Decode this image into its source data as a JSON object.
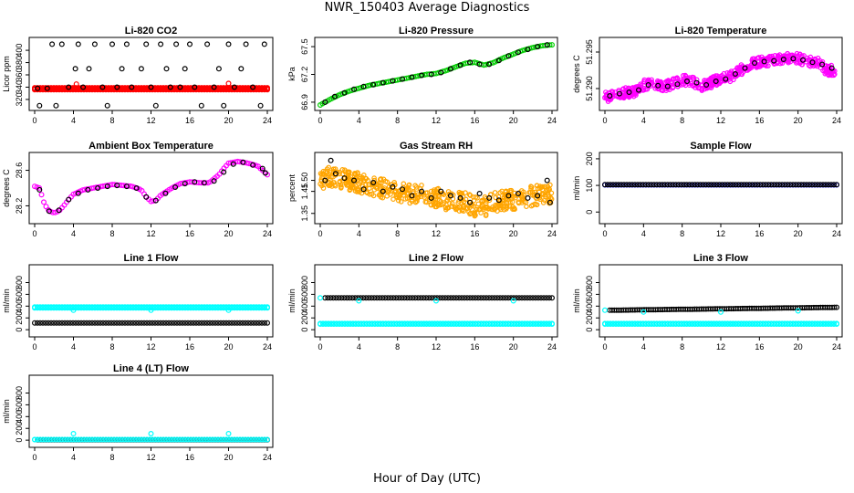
{
  "page": {
    "title": "NWR_150403  Average Diagnostics",
    "xlabel": "Hour of Day (UTC)"
  },
  "colors": {
    "black": "#000000",
    "red": "#ff0000",
    "green": "#00cc00",
    "magenta": "#ff00ff",
    "orange": "#ffa500",
    "blue": "#0000ff",
    "cyan": "#00ffff"
  },
  "chart_data": [
    {
      "type": "scatter",
      "title": "Li-820 CO2",
      "ylabel": "Licor ppm",
      "xlim": [
        0,
        24
      ],
      "ylim": [
        308,
        415
      ],
      "xticks": [
        0,
        4,
        8,
        12,
        16,
        20,
        24
      ],
      "yticks": [
        320,
        340,
        360,
        380,
        400
      ],
      "series": [
        {
          "color": "red",
          "style": "band",
          "x_start": 0,
          "x_end": 24,
          "values": [
            339,
            338,
            337,
            336
          ]
        },
        {
          "color": "black",
          "style": "points",
          "x": [
            0.3,
            0.5,
            1.3,
            1.8,
            2.2,
            2.8,
            3.5,
            4.2,
            4.5,
            5.0,
            5.6,
            6.2,
            7.0,
            7.5,
            8.0,
            8.5,
            9.0,
            9.5,
            10.0,
            11.0,
            11.5,
            12.0,
            12.5,
            13.0,
            13.6,
            14.0,
            14.6,
            15.0,
            15.5,
            16.0,
            16.5,
            17.2,
            17.8,
            18.5,
            19.0,
            19.5,
            20.0,
            20.6,
            21.3,
            21.8,
            22.5,
            23.3,
            23.7
          ],
          "values": [
            338,
            310,
            338,
            410,
            310,
            410,
            340,
            370,
            410,
            340,
            370,
            410,
            340,
            310,
            410,
            340,
            370,
            410,
            340,
            370,
            410,
            340,
            310,
            410,
            370,
            340,
            410,
            340,
            370,
            410,
            340,
            310,
            410,
            340,
            370,
            310,
            410,
            340,
            370,
            410,
            340,
            310,
            410
          ]
        },
        {
          "color": "red",
          "style": "points",
          "x": [
            4.3,
            20.0
          ],
          "values": [
            345,
            346
          ]
        }
      ]
    },
    {
      "type": "scatter",
      "title": "Li-820 Pressure",
      "ylabel": "kPa",
      "xlim": [
        0,
        24
      ],
      "ylim": [
        66.85,
        67.56
      ],
      "xticks": [
        0,
        4,
        8,
        12,
        16,
        20,
        24
      ],
      "yticks": [
        66.9,
        67.2,
        67.5
      ],
      "series": [
        {
          "color": "green",
          "style": "trend",
          "x": [
            0,
            1,
            2,
            3,
            4,
            5,
            6,
            7,
            8,
            9,
            10,
            11,
            12,
            13,
            14,
            15,
            16,
            17,
            18,
            19,
            20,
            21,
            22,
            23,
            24
          ],
          "values": [
            66.87,
            66.93,
            66.98,
            67.02,
            67.05,
            67.08,
            67.1,
            67.12,
            67.14,
            67.16,
            67.18,
            67.2,
            67.21,
            67.24,
            67.28,
            67.32,
            67.33,
            67.3,
            67.33,
            67.38,
            67.42,
            67.46,
            67.49,
            67.51,
            67.52
          ]
        },
        {
          "color": "black",
          "style": "points",
          "x": [
            0.5,
            1.5,
            2.5,
            3.5,
            4.5,
            5.5,
            6.5,
            7.5,
            8.5,
            9.5,
            10.5,
            11.5,
            12.5,
            13.5,
            14.5,
            15.5,
            16.5,
            17.5,
            18.5,
            19.5,
            20.5,
            21.5,
            22.5,
            23.5
          ],
          "values": [
            66.9,
            66.96,
            67.0,
            67.04,
            67.07,
            67.09,
            67.11,
            67.13,
            67.15,
            67.17,
            67.19,
            67.2,
            67.22,
            67.26,
            67.3,
            67.33,
            67.31,
            67.31,
            67.35,
            67.4,
            67.44,
            67.47,
            67.5,
            67.52
          ]
        }
      ]
    },
    {
      "type": "scatter",
      "title": "Li-820 Temperature",
      "ylabel": "degrees C",
      "xlim": [
        0,
        24
      ],
      "ylim": [
        51.2875,
        51.2965
      ],
      "xticks": [
        0,
        4,
        8,
        12,
        16,
        20,
        24
      ],
      "yticks": [
        51.29,
        51.295
      ],
      "ytick_labels": [
        "51.290",
        "51.295"
      ],
      "series": [
        {
          "color": "magenta",
          "style": "cloud",
          "x": [
            0,
            1,
            2,
            3,
            4,
            5,
            6,
            7,
            8,
            9,
            10,
            11,
            12,
            13,
            14,
            15,
            16,
            17,
            18,
            19,
            20,
            21,
            22,
            23,
            24
          ],
          "values": [
            51.2888,
            51.2891,
            51.2894,
            51.2896,
            51.2905,
            51.2906,
            51.2902,
            51.2906,
            51.2912,
            51.291,
            51.2904,
            51.2908,
            51.2914,
            51.2916,
            51.2925,
            51.2933,
            51.2937,
            51.2938,
            51.294,
            51.2942,
            51.2941,
            51.2937,
            51.2936,
            51.2925,
            51.2925
          ],
          "spread": 0.0014
        },
        {
          "color": "black",
          "style": "points",
          "x": [
            0.5,
            1.5,
            2.5,
            3.5,
            4.5,
            5.5,
            6.5,
            7.5,
            8.5,
            9.5,
            10.5,
            11.5,
            12.5,
            13.5,
            14.5,
            15.5,
            16.5,
            17.5,
            18.5,
            19.5,
            20.5,
            21.5,
            22.5,
            23.5
          ],
          "values": [
            51.289,
            51.2893,
            51.2895,
            51.2898,
            51.2905,
            51.2904,
            51.2903,
            51.2906,
            51.291,
            51.2908,
            51.2905,
            51.291,
            51.2913,
            51.292,
            51.2928,
            51.2935,
            51.2937,
            51.2938,
            51.294,
            51.2941,
            51.2939,
            51.2936,
            51.2933,
            51.2928
          ]
        }
      ]
    },
    {
      "type": "scatter",
      "title": "Ambient Box Temperature",
      "ylabel": "degrees C",
      "xlim": [
        0,
        24
      ],
      "ylim": [
        28.04,
        28.76
      ],
      "xticks": [
        0,
        4,
        8,
        12,
        16,
        20,
        24
      ],
      "yticks": [
        28.2,
        28.6
      ],
      "series": [
        {
          "color": "magenta",
          "style": "trend",
          "x": [
            0,
            0.5,
            1,
            1.5,
            2,
            2.5,
            3,
            3.5,
            4,
            5,
            6,
            7,
            8,
            9,
            10,
            11,
            11.5,
            12,
            12.5,
            13,
            14,
            15,
            16,
            17,
            18,
            19,
            19.5,
            20,
            21,
            22,
            23,
            23.5,
            24
          ],
          "values": [
            28.42,
            28.4,
            28.22,
            28.14,
            28.12,
            28.14,
            28.2,
            28.27,
            28.33,
            28.38,
            28.4,
            28.42,
            28.44,
            28.43,
            28.42,
            28.38,
            28.3,
            28.25,
            28.26,
            28.32,
            28.39,
            28.45,
            28.47,
            28.46,
            28.46,
            28.55,
            28.62,
            28.68,
            28.7,
            28.68,
            28.65,
            28.6,
            28.55
          ]
        },
        {
          "color": "black",
          "style": "points",
          "x": [
            0.5,
            1.5,
            2.5,
            3.5,
            4.5,
            5.5,
            6.5,
            7.5,
            8.5,
            9.5,
            10.5,
            11.5,
            12.5,
            13.5,
            14.5,
            15.5,
            16.5,
            17.5,
            18.5,
            19.5,
            20.5,
            21.5,
            22.5,
            23.5,
            23.8
          ],
          "values": [
            28.38,
            28.14,
            28.15,
            28.27,
            28.34,
            28.38,
            28.4,
            28.42,
            28.43,
            28.42,
            28.4,
            28.3,
            28.26,
            28.34,
            28.41,
            28.45,
            28.47,
            28.46,
            28.48,
            28.58,
            28.67,
            28.69,
            28.66,
            28.62,
            28.57
          ]
        }
      ]
    },
    {
      "type": "scatter",
      "title": "Gas Stream RH",
      "ylabel": "percent",
      "xlim": [
        0,
        24
      ],
      "ylim": [
        1.32,
        1.61
      ],
      "xticks": [
        0,
        4,
        8,
        12,
        16,
        20,
        24
      ],
      "yticks": [
        1.35,
        1.45,
        1.5
      ],
      "ytick_labels": [
        "1.35",
        "1.45",
        "1.50"
      ],
      "series": [
        {
          "color": "orange",
          "style": "cloud",
          "x": [
            0,
            1,
            2,
            3,
            4,
            5,
            6,
            7,
            8,
            9,
            10,
            11,
            12,
            13,
            14,
            15,
            16,
            17,
            18,
            19,
            20,
            21,
            22,
            23,
            24
          ],
          "values": [
            1.5,
            1.52,
            1.51,
            1.5,
            1.49,
            1.48,
            1.47,
            1.46,
            1.45,
            1.44,
            1.44,
            1.43,
            1.42,
            1.41,
            1.41,
            1.4,
            1.38,
            1.38,
            1.4,
            1.41,
            1.41,
            1.42,
            1.43,
            1.44,
            1.44
          ],
          "spread": 0.09
        },
        {
          "color": "black",
          "style": "points",
          "x": [
            0.5,
            1.1,
            1.6,
            2.5,
            3.5,
            4.5,
            5.5,
            6.5,
            7.5,
            8.5,
            9.5,
            10.5,
            11.5,
            12.5,
            13.5,
            14.5,
            15.5,
            16.5,
            17.5,
            18.5,
            19.5,
            20.5,
            21.5,
            22.5,
            23.5,
            23.8
          ],
          "values": [
            1.5,
            1.59,
            1.53,
            1.51,
            1.5,
            1.46,
            1.49,
            1.45,
            1.47,
            1.46,
            1.43,
            1.45,
            1.42,
            1.45,
            1.43,
            1.42,
            1.4,
            1.44,
            1.42,
            1.41,
            1.43,
            1.44,
            1.42,
            1.43,
            1.5,
            1.4
          ]
        }
      ]
    },
    {
      "type": "scatter",
      "title": "Sample Flow",
      "ylabel": "ml/min",
      "xlim": [
        0,
        24
      ],
      "ylim": [
        -30,
        210
      ],
      "xticks": [
        0,
        4,
        8,
        12,
        16,
        20,
        24
      ],
      "yticks": [
        0,
        100,
        200
      ],
      "series": [
        {
          "color": "blue",
          "style": "band",
          "x_start": 0,
          "x_end": 24,
          "values": [
            102
          ]
        },
        {
          "color": "black",
          "style": "band",
          "x_start": 0,
          "x_end": 24,
          "values": [
            103
          ]
        }
      ]
    },
    {
      "type": "scatter",
      "title": "Line 1 Flow",
      "ylabel": "ml/min",
      "xlim": [
        0,
        24
      ],
      "ylim": [
        -60,
        1040
      ],
      "xticks": [
        0,
        4,
        8,
        12,
        16,
        20,
        24
      ],
      "yticks": [
        0,
        200,
        400,
        600,
        800
      ],
      "series": [
        {
          "color": "cyan",
          "style": "band",
          "x_start": 0,
          "x_end": 24,
          "values": [
            370,
            385
          ]
        },
        {
          "color": "black",
          "style": "band",
          "x_start": 0,
          "x_end": 24,
          "values": [
            115
          ]
        },
        {
          "color": "cyan",
          "style": "points",
          "x": [
            4,
            12,
            20
          ],
          "values": [
            330,
            330,
            330
          ]
        }
      ]
    },
    {
      "type": "scatter",
      "title": "Line 2 Flow",
      "ylabel": "ml/min",
      "xlim": [
        0,
        24
      ],
      "ylim": [
        -60,
        1040
      ],
      "xticks": [
        0,
        4,
        8,
        12,
        16,
        20,
        24
      ],
      "yticks": [
        0,
        200,
        400,
        600,
        800
      ],
      "series": [
        {
          "color": "cyan",
          "style": "band",
          "x_start": 0,
          "x_end": 24,
          "values": [
            95,
            105
          ]
        },
        {
          "color": "black",
          "style": "band",
          "x_start": 0.5,
          "x_end": 24,
          "values": [
            540
          ]
        },
        {
          "color": "cyan",
          "style": "points",
          "x": [
            0,
            4,
            12,
            20
          ],
          "values": [
            540,
            490,
            490,
            490
          ]
        }
      ]
    },
    {
      "type": "scatter",
      "title": "Line 3 Flow",
      "ylabel": "ml/min",
      "xlim": [
        0,
        24
      ],
      "ylim": [
        -60,
        1040
      ],
      "xticks": [
        0,
        4,
        8,
        12,
        16,
        20,
        24
      ],
      "yticks": [
        0,
        200,
        400,
        600,
        800
      ],
      "series": [
        {
          "color": "cyan",
          "style": "band",
          "x_start": 0,
          "x_end": 24,
          "values": [
            95,
            105
          ]
        },
        {
          "color": "black",
          "style": "trend",
          "x": [
            0.5,
            24
          ],
          "values": [
            330,
            380
          ]
        },
        {
          "color": "cyan",
          "style": "points",
          "x": [
            0,
            4,
            12,
            20
          ],
          "values": [
            330,
            300,
            300,
            320
          ]
        }
      ]
    },
    {
      "type": "scatter",
      "title": "Line 4 (LT) Flow",
      "ylabel": "ml/min",
      "xlim": [
        0,
        24
      ],
      "ylim": [
        -60,
        1040
      ],
      "xticks": [
        0,
        4,
        8,
        12,
        16,
        20,
        24
      ],
      "yticks": [
        0,
        200,
        400,
        600,
        800
      ],
      "series": [
        {
          "color": "black",
          "style": "band",
          "x_start": 0.3,
          "x_end": 24,
          "values": [
            5
          ]
        },
        {
          "color": "cyan",
          "style": "band",
          "x_start": 0,
          "x_end": 24,
          "values": [
            10
          ]
        },
        {
          "color": "cyan",
          "style": "points",
          "x": [
            0,
            4,
            12,
            20
          ],
          "values": [
            10,
            110,
            110,
            110
          ]
        }
      ]
    }
  ]
}
